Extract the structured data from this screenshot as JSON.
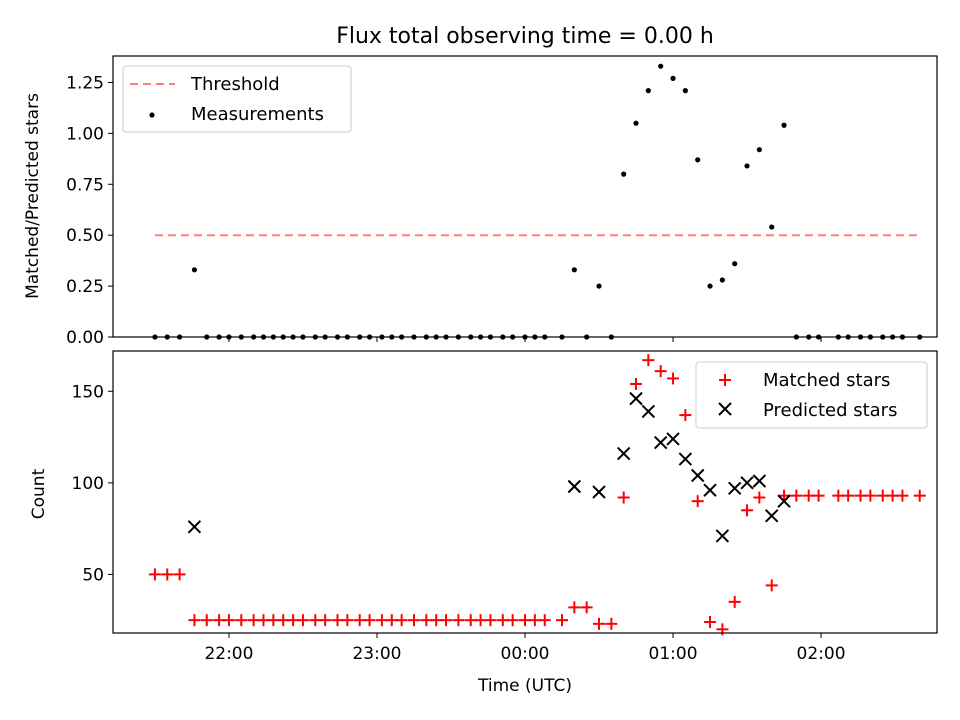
{
  "chart_data": [
    {
      "type": "scatter",
      "title": "Flux total observing time = 0.00 h",
      "ylabel": "Matched/Predicted stars",
      "xlabel": "",
      "xlim": [
        "21:13",
        "02:47"
      ],
      "ylim": [
        0,
        1.38
      ],
      "y_ticks": [
        0.0,
        0.25,
        0.5,
        0.75,
        1.0,
        1.25
      ],
      "y_tick_labels": [
        "0.00",
        "0.25",
        "0.50",
        "0.75",
        "1.00",
        "1.25"
      ],
      "grid": false,
      "legend_position": "upper left",
      "threshold": {
        "name": "Threshold",
        "value": 0.5,
        "x_range": [
          "21:30",
          "02:40"
        ],
        "color": "#ff7f7f",
        "style": "dashed"
      },
      "series": [
        {
          "name": "Measurements",
          "marker": "dot",
          "color": "#000000",
          "points": [
            [
              "21:30",
              0.0
            ],
            [
              "21:35",
              0.0
            ],
            [
              "21:40",
              0.0
            ],
            [
              "21:46",
              0.33
            ],
            [
              "21:51",
              0.0
            ],
            [
              "21:56",
              0.0
            ],
            [
              "22:00",
              0.0
            ],
            [
              "22:05",
              0.0
            ],
            [
              "22:10",
              0.0
            ],
            [
              "22:14",
              0.0
            ],
            [
              "22:18",
              0.0
            ],
            [
              "22:22",
              0.0
            ],
            [
              "22:26",
              0.0
            ],
            [
              "22:30",
              0.0
            ],
            [
              "22:35",
              0.0
            ],
            [
              "22:39",
              0.0
            ],
            [
              "22:44",
              0.0
            ],
            [
              "22:48",
              0.0
            ],
            [
              "22:53",
              0.0
            ],
            [
              "22:57",
              0.0
            ],
            [
              "23:02",
              0.0
            ],
            [
              "23:06",
              0.0
            ],
            [
              "23:10",
              0.0
            ],
            [
              "23:15",
              0.0
            ],
            [
              "23:20",
              0.0
            ],
            [
              "23:24",
              0.0
            ],
            [
              "23:28",
              0.0
            ],
            [
              "23:33",
              0.0
            ],
            [
              "23:38",
              0.0
            ],
            [
              "23:42",
              0.0
            ],
            [
              "23:46",
              0.0
            ],
            [
              "23:51",
              0.0
            ],
            [
              "23:55",
              0.0
            ],
            [
              "00:00",
              0.0
            ],
            [
              "00:04",
              0.0
            ],
            [
              "00:08",
              0.0
            ],
            [
              "00:15",
              0.0
            ],
            [
              "00:20",
              0.33
            ],
            [
              "00:25",
              0.0
            ],
            [
              "00:30",
              0.25
            ],
            [
              "00:35",
              0.0
            ],
            [
              "00:40",
              0.8
            ],
            [
              "00:45",
              1.05
            ],
            [
              "00:50",
              1.21
            ],
            [
              "00:55",
              1.33
            ],
            [
              "01:00",
              1.27
            ],
            [
              "01:05",
              1.21
            ],
            [
              "01:10",
              0.87
            ],
            [
              "01:15",
              0.25
            ],
            [
              "01:20",
              0.28
            ],
            [
              "01:25",
              0.36
            ],
            [
              "01:30",
              0.84
            ],
            [
              "01:35",
              0.92
            ],
            [
              "01:40",
              0.54
            ],
            [
              "01:45",
              1.04
            ],
            [
              "01:50",
              0.0
            ],
            [
              "01:55",
              0.0
            ],
            [
              "01:59",
              0.0
            ],
            [
              "02:07",
              0.0
            ],
            [
              "02:11",
              0.0
            ],
            [
              "02:16",
              0.0
            ],
            [
              "02:20",
              0.0
            ],
            [
              "02:25",
              0.0
            ],
            [
              "02:29",
              0.0
            ],
            [
              "02:33",
              0.0
            ],
            [
              "02:40",
              0.0
            ]
          ]
        }
      ]
    },
    {
      "type": "scatter",
      "title": "",
      "xlabel": "Time (UTC)",
      "ylabel": "Count",
      "xlim": [
        "21:13",
        "02:47"
      ],
      "ylim": [
        18,
        172
      ],
      "x_ticks": [
        "22:00",
        "23:00",
        "00:00",
        "01:00",
        "02:00"
      ],
      "y_ticks": [
        50,
        100,
        150
      ],
      "grid": false,
      "legend_position": "upper right",
      "series": [
        {
          "name": "Matched stars",
          "marker": "plus",
          "color": "#ff0000",
          "points": [
            [
              "21:30",
              50
            ],
            [
              "21:35",
              50
            ],
            [
              "21:40",
              50
            ],
            [
              "21:46",
              25
            ],
            [
              "21:51",
              25
            ],
            [
              "21:56",
              25
            ],
            [
              "22:00",
              25
            ],
            [
              "22:05",
              25
            ],
            [
              "22:10",
              25
            ],
            [
              "22:14",
              25
            ],
            [
              "22:18",
              25
            ],
            [
              "22:22",
              25
            ],
            [
              "22:26",
              25
            ],
            [
              "22:30",
              25
            ],
            [
              "22:35",
              25
            ],
            [
              "22:39",
              25
            ],
            [
              "22:44",
              25
            ],
            [
              "22:48",
              25
            ],
            [
              "22:53",
              25
            ],
            [
              "22:57",
              25
            ],
            [
              "23:02",
              25
            ],
            [
              "23:06",
              25
            ],
            [
              "23:10",
              25
            ],
            [
              "23:15",
              25
            ],
            [
              "23:20",
              25
            ],
            [
              "23:24",
              25
            ],
            [
              "23:28",
              25
            ],
            [
              "23:33",
              25
            ],
            [
              "23:38",
              25
            ],
            [
              "23:42",
              25
            ],
            [
              "23:46",
              25
            ],
            [
              "23:51",
              25
            ],
            [
              "23:55",
              25
            ],
            [
              "00:00",
              25
            ],
            [
              "00:04",
              25
            ],
            [
              "00:08",
              25
            ],
            [
              "00:15",
              25
            ],
            [
              "00:20",
              32
            ],
            [
              "00:25",
              32
            ],
            [
              "00:30",
              23
            ],
            [
              "00:35",
              23
            ],
            [
              "00:40",
              92
            ],
            [
              "00:45",
              154
            ],
            [
              "00:50",
              167
            ],
            [
              "00:55",
              161
            ],
            [
              "01:00",
              157
            ],
            [
              "01:05",
              137
            ],
            [
              "01:10",
              90
            ],
            [
              "01:15",
              24
            ],
            [
              "01:20",
              20
            ],
            [
              "01:25",
              35
            ],
            [
              "01:30",
              85
            ],
            [
              "01:35",
              92
            ],
            [
              "01:40",
              44
            ],
            [
              "01:45",
              93
            ],
            [
              "01:50",
              93
            ],
            [
              "01:55",
              93
            ],
            [
              "01:59",
              93
            ],
            [
              "02:07",
              93
            ],
            [
              "02:11",
              93
            ],
            [
              "02:16",
              93
            ],
            [
              "02:20",
              93
            ],
            [
              "02:25",
              93
            ],
            [
              "02:29",
              93
            ],
            [
              "02:33",
              93
            ],
            [
              "02:40",
              93
            ]
          ]
        },
        {
          "name": "Predicted stars",
          "marker": "x",
          "color": "#000000",
          "points": [
            [
              "21:46",
              76
            ],
            [
              "00:20",
              98
            ],
            [
              "00:30",
              95
            ],
            [
              "00:40",
              116
            ],
            [
              "00:45",
              146
            ],
            [
              "00:50",
              139
            ],
            [
              "00:55",
              122
            ],
            [
              "01:00",
              124
            ],
            [
              "01:05",
              113
            ],
            [
              "01:10",
              104
            ],
            [
              "01:15",
              96
            ],
            [
              "01:20",
              71
            ],
            [
              "01:25",
              97
            ],
            [
              "01:30",
              100
            ],
            [
              "01:35",
              101
            ],
            [
              "01:40",
              82
            ],
            [
              "01:45",
              90
            ]
          ]
        }
      ]
    }
  ]
}
